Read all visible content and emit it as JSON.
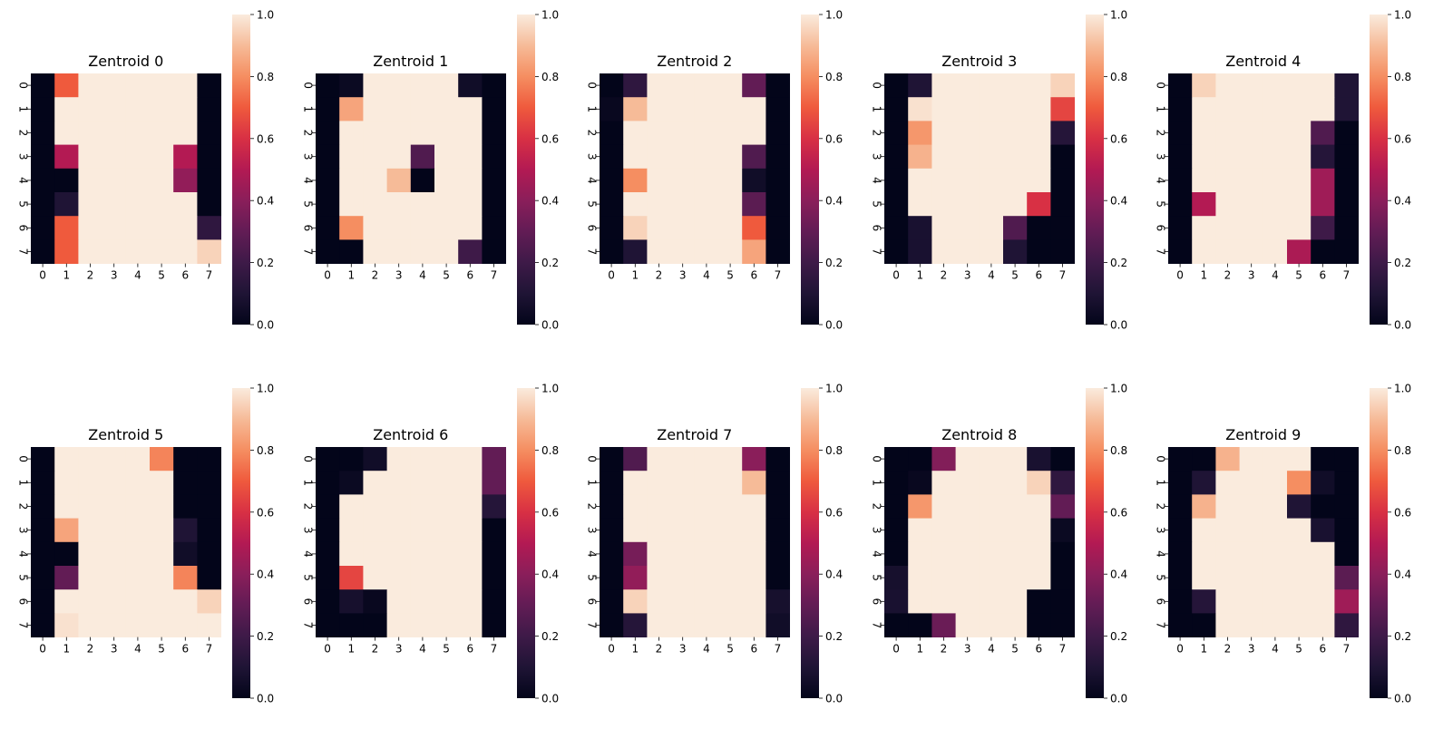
{
  "chart_data": [
    {
      "type": "heatmap",
      "title": "Zentroid 0",
      "x_ticks": [
        "0",
        "1",
        "2",
        "3",
        "4",
        "5",
        "6",
        "7"
      ],
      "y_ticks": [
        "0",
        "1",
        "2",
        "3",
        "4",
        "5",
        "6",
        "7"
      ],
      "colorbar": {
        "min": 0.0,
        "max": 1.0,
        "ticks": [
          "0.0",
          "0.2",
          "0.4",
          "0.6",
          "0.8",
          "1.0"
        ]
      },
      "values": [
        [
          0,
          0.7,
          1,
          1,
          1,
          1,
          1,
          0
        ],
        [
          0,
          1,
          1,
          1,
          1,
          1,
          1,
          0
        ],
        [
          0,
          1,
          1,
          1,
          1,
          1,
          1,
          0
        ],
        [
          0,
          0.5,
          1,
          1,
          1,
          1,
          0.5,
          0
        ],
        [
          0,
          0,
          1,
          1,
          1,
          1,
          0.42,
          0
        ],
        [
          0,
          0.1,
          1,
          1,
          1,
          1,
          1,
          0
        ],
        [
          0,
          0.7,
          1,
          1,
          1,
          1,
          1,
          0.15
        ],
        [
          0,
          0.7,
          1,
          1,
          1,
          1,
          1,
          0.95
        ]
      ]
    },
    {
      "type": "heatmap",
      "title": "Zentroid 1",
      "x_ticks": [
        "0",
        "1",
        "2",
        "3",
        "4",
        "5",
        "6",
        "7"
      ],
      "y_ticks": [
        "0",
        "1",
        "2",
        "3",
        "4",
        "5",
        "6",
        "7"
      ],
      "colorbar": {
        "min": 0.0,
        "max": 1.0,
        "ticks": [
          "0.0",
          "0.2",
          "0.4",
          "0.6",
          "0.8",
          "1.0"
        ]
      },
      "values": [
        [
          0,
          0.03,
          1,
          1,
          1,
          1,
          0.05,
          0
        ],
        [
          0,
          0.85,
          1,
          1,
          1,
          1,
          1,
          0
        ],
        [
          0,
          1,
          1,
          1,
          1,
          1,
          1,
          0
        ],
        [
          0,
          1,
          1,
          1,
          0.25,
          1,
          1,
          0
        ],
        [
          0,
          1,
          1,
          0.9,
          0,
          1,
          1,
          0
        ],
        [
          0,
          1,
          1,
          1,
          1,
          1,
          1,
          0
        ],
        [
          0,
          0.8,
          1,
          1,
          1,
          1,
          1,
          0
        ],
        [
          0,
          0,
          1,
          1,
          1,
          1,
          0.2,
          0
        ]
      ]
    },
    {
      "type": "heatmap",
      "title": "Zentroid 2",
      "x_ticks": [
        "0",
        "1",
        "2",
        "3",
        "4",
        "5",
        "6",
        "7"
      ],
      "y_ticks": [
        "0",
        "1",
        "2",
        "3",
        "4",
        "5",
        "6",
        "7"
      ],
      "colorbar": {
        "min": 0.0,
        "max": 1.0,
        "ticks": [
          "0.0",
          "0.2",
          "0.4",
          "0.6",
          "0.8",
          "1.0"
        ]
      },
      "values": [
        [
          0,
          0.15,
          1,
          1,
          1,
          1,
          0.3,
          0
        ],
        [
          0.02,
          0.9,
          1,
          1,
          1,
          1,
          1,
          0
        ],
        [
          0,
          1,
          1,
          1,
          1,
          1,
          1,
          0
        ],
        [
          0,
          1,
          1,
          1,
          1,
          1,
          0.25,
          0
        ],
        [
          0,
          0.8,
          1,
          1,
          1,
          1,
          0.05,
          0
        ],
        [
          0,
          1,
          1,
          1,
          1,
          1,
          0.28,
          0
        ],
        [
          0,
          0.95,
          1,
          1,
          1,
          1,
          0.7,
          0
        ],
        [
          0,
          0.1,
          1,
          1,
          1,
          1,
          0.85,
          0
        ]
      ]
    },
    {
      "type": "heatmap",
      "title": "Zentroid 3",
      "x_ticks": [
        "0",
        "1",
        "2",
        "3",
        "4",
        "5",
        "6",
        "7"
      ],
      "y_ticks": [
        "0",
        "1",
        "2",
        "3",
        "4",
        "5",
        "6",
        "7"
      ],
      "colorbar": {
        "min": 0.0,
        "max": 1.0,
        "ticks": [
          "0.0",
          "0.2",
          "0.4",
          "0.6",
          "0.8",
          "1.0"
        ]
      },
      "values": [
        [
          0,
          0.1,
          1,
          1,
          1,
          1,
          1,
          0.95
        ],
        [
          0,
          0.98,
          1,
          1,
          1,
          1,
          1,
          0.65
        ],
        [
          0,
          0.82,
          1,
          1,
          1,
          1,
          1,
          0.12
        ],
        [
          0,
          0.88,
          1,
          1,
          1,
          1,
          1,
          0
        ],
        [
          0,
          1,
          1,
          1,
          1,
          1,
          1,
          0
        ],
        [
          0,
          1,
          1,
          1,
          1,
          1,
          0.6,
          0
        ],
        [
          0,
          0.08,
          1,
          1,
          1,
          0.25,
          0,
          0
        ],
        [
          0,
          0.08,
          1,
          1,
          1,
          0.1,
          0,
          0
        ]
      ]
    },
    {
      "type": "heatmap",
      "title": "Zentroid 4",
      "x_ticks": [
        "0",
        "1",
        "2",
        "3",
        "4",
        "5",
        "6",
        "7"
      ],
      "y_ticks": [
        "0",
        "1",
        "2",
        "3",
        "4",
        "5",
        "6",
        "7"
      ],
      "colorbar": {
        "min": 0.0,
        "max": 1.0,
        "ticks": [
          "0.0",
          "0.2",
          "0.4",
          "0.6",
          "0.8",
          "1.0"
        ]
      },
      "values": [
        [
          0,
          0.95,
          1,
          1,
          1,
          1,
          1,
          0.1
        ],
        [
          0,
          1,
          1,
          1,
          1,
          1,
          1,
          0.1
        ],
        [
          0,
          1,
          1,
          1,
          1,
          1,
          0.25,
          0
        ],
        [
          0,
          1,
          1,
          1,
          1,
          1,
          0.12,
          0
        ],
        [
          0,
          1,
          1,
          1,
          1,
          1,
          0.45,
          0
        ],
        [
          0,
          0.5,
          1,
          1,
          1,
          1,
          0.45,
          0
        ],
        [
          0,
          1,
          1,
          1,
          1,
          1,
          0.2,
          0
        ],
        [
          0,
          1,
          1,
          1,
          1,
          0.48,
          0,
          0
        ]
      ]
    },
    {
      "type": "heatmap",
      "title": "Zentroid 5",
      "x_ticks": [
        "0",
        "1",
        "2",
        "3",
        "4",
        "5",
        "6",
        "7"
      ],
      "y_ticks": [
        "0",
        "1",
        "2",
        "3",
        "4",
        "5",
        "6",
        "7"
      ],
      "colorbar": {
        "min": 0.0,
        "max": 1.0,
        "ticks": [
          "0.0",
          "0.2",
          "0.4",
          "0.6",
          "0.8",
          "1.0"
        ]
      },
      "values": [
        [
          0,
          1,
          1,
          1,
          1,
          0.78,
          0,
          0
        ],
        [
          0,
          1,
          1,
          1,
          1,
          1,
          0,
          0
        ],
        [
          0,
          1,
          1,
          1,
          1,
          1,
          0,
          0
        ],
        [
          0,
          0.85,
          1,
          1,
          1,
          1,
          0.1,
          0
        ],
        [
          0,
          0,
          1,
          1,
          1,
          1,
          0.05,
          0
        ],
        [
          0,
          0.3,
          1,
          1,
          1,
          1,
          0.78,
          0
        ],
        [
          0,
          1,
          1,
          1,
          1,
          1,
          1,
          0.95
        ],
        [
          0,
          0.98,
          1,
          1,
          1,
          1,
          1,
          1
        ]
      ]
    },
    {
      "type": "heatmap",
      "title": "Zentroid 6",
      "x_ticks": [
        "0",
        "1",
        "2",
        "3",
        "4",
        "5",
        "6",
        "7"
      ],
      "y_ticks": [
        "0",
        "1",
        "2",
        "3",
        "4",
        "5",
        "6",
        "7"
      ],
      "colorbar": {
        "min": 0.0,
        "max": 1.0,
        "ticks": [
          "0.0",
          "0.2",
          "0.4",
          "0.6",
          "0.8",
          "1.0"
        ]
      },
      "values": [
        [
          0,
          0,
          0.05,
          1,
          1,
          1,
          1,
          0.3
        ],
        [
          0,
          0.03,
          1,
          1,
          1,
          1,
          1,
          0.3
        ],
        [
          0,
          1,
          1,
          1,
          1,
          1,
          1,
          0.12
        ],
        [
          0,
          1,
          1,
          1,
          1,
          1,
          1,
          0
        ],
        [
          0,
          1,
          1,
          1,
          1,
          1,
          1,
          0
        ],
        [
          0,
          0.65,
          1,
          1,
          1,
          1,
          1,
          0
        ],
        [
          0,
          0.07,
          0.02,
          1,
          1,
          1,
          1,
          0
        ],
        [
          0,
          0,
          0,
          1,
          1,
          1,
          1,
          0
        ]
      ]
    },
    {
      "type": "heatmap",
      "title": "Zentroid 7",
      "x_ticks": [
        "0",
        "1",
        "2",
        "3",
        "4",
        "5",
        "6",
        "7"
      ],
      "y_ticks": [
        "0",
        "1",
        "2",
        "3",
        "4",
        "5",
        "6",
        "7"
      ],
      "colorbar": {
        "min": 0.0,
        "max": 1.0,
        "ticks": [
          "0.0",
          "0.2",
          "0.4",
          "0.6",
          "0.8",
          "1.0"
        ]
      },
      "values": [
        [
          0,
          0.25,
          1,
          1,
          1,
          1,
          0.4,
          0
        ],
        [
          0,
          1,
          1,
          1,
          1,
          1,
          0.9,
          0
        ],
        [
          0,
          1,
          1,
          1,
          1,
          1,
          1,
          0
        ],
        [
          0,
          1,
          1,
          1,
          1,
          1,
          1,
          0
        ],
        [
          0,
          0.35,
          1,
          1,
          1,
          1,
          1,
          0
        ],
        [
          0,
          0.42,
          1,
          1,
          1,
          1,
          1,
          0
        ],
        [
          0,
          0.95,
          1,
          1,
          1,
          1,
          1,
          0.07
        ],
        [
          0,
          0.12,
          1,
          1,
          1,
          1,
          1,
          0.05
        ]
      ]
    },
    {
      "type": "heatmap",
      "title": "Zentroid 8",
      "x_ticks": [
        "0",
        "1",
        "2",
        "3",
        "4",
        "5",
        "6",
        "7"
      ],
      "y_ticks": [
        "0",
        "1",
        "2",
        "3",
        "4",
        "5",
        "6",
        "7"
      ],
      "colorbar": {
        "min": 0.0,
        "max": 1.0,
        "ticks": [
          "0.0",
          "0.2",
          "0.4",
          "0.6",
          "0.8",
          "1.0"
        ]
      },
      "values": [
        [
          0,
          0,
          0.38,
          1,
          1,
          1,
          0.08,
          0
        ],
        [
          0,
          0.02,
          1,
          1,
          1,
          1,
          0.95,
          0.15
        ],
        [
          0,
          0.82,
          1,
          1,
          1,
          1,
          1,
          0.3
        ],
        [
          0,
          1,
          1,
          1,
          1,
          1,
          1,
          0.03
        ],
        [
          0,
          1,
          1,
          1,
          1,
          1,
          1,
          0
        ],
        [
          0.07,
          1,
          1,
          1,
          1,
          1,
          1,
          0
        ],
        [
          0.08,
          1,
          1,
          1,
          1,
          1,
          0,
          0
        ],
        [
          0,
          0,
          0.32,
          1,
          1,
          1,
          0,
          0
        ]
      ]
    },
    {
      "type": "heatmap",
      "title": "Zentroid 9",
      "x_ticks": [
        "0",
        "1",
        "2",
        "3",
        "4",
        "5",
        "6",
        "7"
      ],
      "y_ticks": [
        "0",
        "1",
        "2",
        "3",
        "4",
        "5",
        "6",
        "7"
      ],
      "colorbar": {
        "min": 0.0,
        "max": 1.0,
        "ticks": [
          "0.0",
          "0.2",
          "0.4",
          "0.6",
          "0.8",
          "1.0"
        ]
      },
      "values": [
        [
          0,
          0,
          0.88,
          1,
          1,
          1,
          0,
          0
        ],
        [
          0,
          0.1,
          1,
          1,
          1,
          0.8,
          0.05,
          0
        ],
        [
          0,
          0.88,
          1,
          1,
          1,
          0.1,
          0,
          0
        ],
        [
          0,
          1,
          1,
          1,
          1,
          1,
          0.08,
          0
        ],
        [
          0,
          1,
          1,
          1,
          1,
          1,
          1,
          0
        ],
        [
          0,
          1,
          1,
          1,
          1,
          1,
          1,
          0.28
        ],
        [
          0,
          0.12,
          1,
          1,
          1,
          1,
          1,
          0.45
        ],
        [
          0,
          0,
          1,
          1,
          1,
          1,
          1,
          0.15
        ]
      ]
    }
  ]
}
